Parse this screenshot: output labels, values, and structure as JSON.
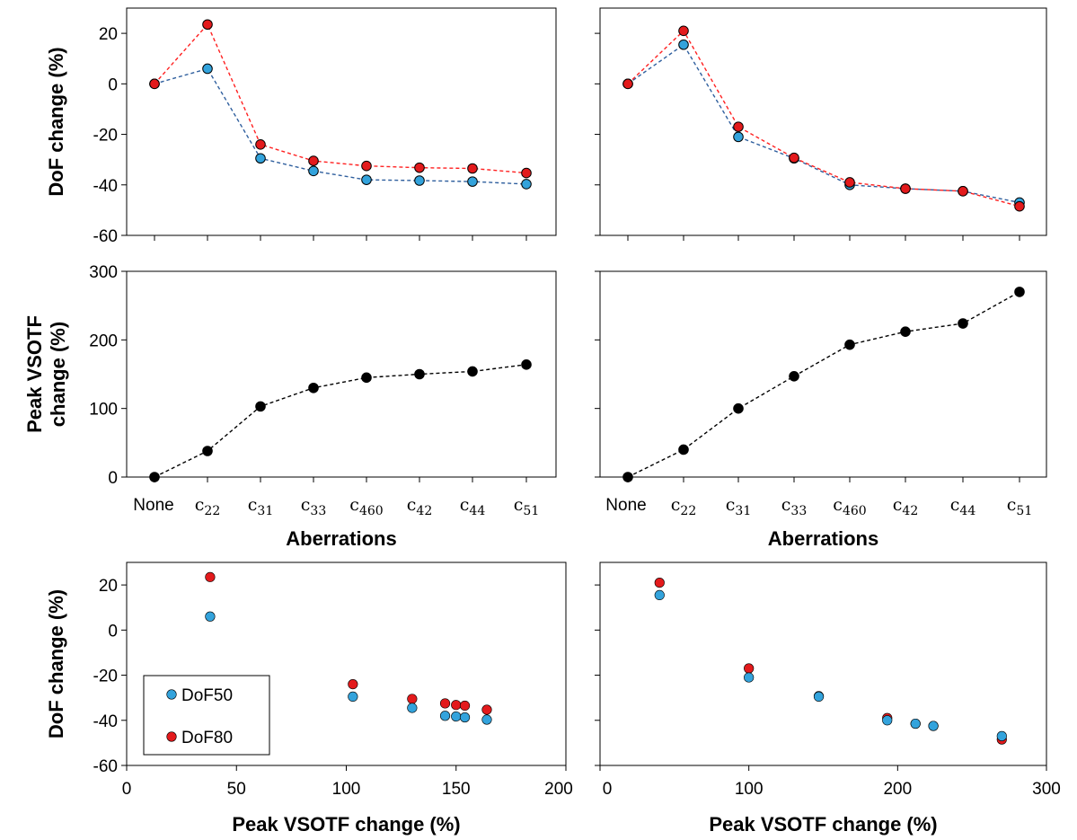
{
  "chart_data": [
    {
      "id": "p1",
      "type": "line",
      "position": "top-left",
      "categories": [
        "None",
        "c22",
        "c31",
        "c33",
        "c460",
        "c42",
        "c44",
        "c51"
      ],
      "ylim": [
        -60,
        30
      ],
      "yticks": [
        -60,
        -40,
        -20,
        0,
        20
      ],
      "ylabel": "DoF change (%)",
      "series": [
        {
          "name": "DoF50",
          "color": "#33a3dc",
          "line_color": "#2f5f9e",
          "values": [
            0,
            6,
            -29.5,
            -34.5,
            -38,
            -38.3,
            -38.7,
            -39.7
          ]
        },
        {
          "name": "DoF80",
          "color": "#e31a1c",
          "line_color": "#ff2020",
          "values": [
            0,
            23.5,
            -24,
            -30.5,
            -32.5,
            -33.2,
            -33.5,
            -35.3
          ]
        }
      ]
    },
    {
      "id": "p2",
      "type": "line",
      "position": "top-right",
      "categories": [
        "None",
        "c22",
        "c31",
        "c33",
        "c460",
        "c42",
        "c44",
        "c51"
      ],
      "ylim": [
        -60,
        30
      ],
      "yticks": [
        -60,
        -40,
        -20,
        0,
        20
      ],
      "series": [
        {
          "name": "DoF50",
          "color": "#33a3dc",
          "line_color": "#2f5f9e",
          "values": [
            0,
            15.5,
            -21,
            -29.5,
            -40,
            -41.5,
            -42.5,
            -47
          ]
        },
        {
          "name": "DoF80",
          "color": "#e31a1c",
          "line_color": "#ff2020",
          "values": [
            0,
            21,
            -17,
            -29.3,
            -39,
            -41.5,
            -42.5,
            -48.5
          ]
        }
      ]
    },
    {
      "id": "p3",
      "type": "line",
      "position": "middle-left",
      "categories": [
        "None",
        "c22",
        "c31",
        "c33",
        "c460",
        "c42",
        "c44",
        "c51"
      ],
      "ylim": [
        0,
        300
      ],
      "yticks": [
        0,
        100,
        200,
        300
      ],
      "ylabel_lines": [
        "Peak VSOTF",
        "change (%)"
      ],
      "xlabel": "Aberrations",
      "series": [
        {
          "name": "Peak VSOTF",
          "color": "#000000",
          "line_color": "#000000",
          "values": [
            0,
            38,
            103,
            130,
            145,
            150,
            154,
            164
          ]
        }
      ]
    },
    {
      "id": "p4",
      "type": "line",
      "position": "middle-right",
      "categories": [
        "None",
        "c22",
        "c31",
        "c33",
        "c460",
        "c42",
        "c44",
        "c51"
      ],
      "ylim": [
        0,
        300
      ],
      "yticks": [
        0,
        100,
        200,
        300
      ],
      "xlabel": "Aberrations",
      "series": [
        {
          "name": "Peak VSOTF",
          "color": "#000000",
          "line_color": "#000000",
          "values": [
            0,
            40,
            100,
            147,
            193,
            212,
            224,
            270
          ]
        }
      ]
    },
    {
      "id": "p5",
      "type": "scatter",
      "position": "bottom-left",
      "xlim": [
        0,
        200
      ],
      "xticks": [
        0,
        50,
        100,
        150,
        200
      ],
      "ylim": [
        -60,
        30
      ],
      "yticks": [
        -60,
        -40,
        -20,
        0,
        20
      ],
      "ylabel": "DoF change (%)",
      "xlabel": "Peak VSOTF change (%)",
      "legend": "bottom-left",
      "series": [
        {
          "name": "DoF50",
          "color": "#33a3dc",
          "x": [
            38,
            103,
            130,
            145,
            150,
            154,
            164
          ],
          "y": [
            6,
            -29.5,
            -34.5,
            -38,
            -38.3,
            -38.7,
            -39.7
          ]
        },
        {
          "name": "DoF80",
          "color": "#e31a1c",
          "x": [
            38,
            103,
            130,
            145,
            150,
            154,
            164
          ],
          "y": [
            23.5,
            -24,
            -30.5,
            -32.5,
            -33.2,
            -33.5,
            -35.3
          ]
        }
      ]
    },
    {
      "id": "p6",
      "type": "scatter",
      "position": "bottom-right",
      "xlim": [
        0,
        300
      ],
      "xticks": [
        0,
        100,
        200,
        300
      ],
      "ylim": [
        -60,
        30
      ],
      "yticks": [
        -60,
        -40,
        -20,
        0,
        20
      ],
      "xlabel": "Peak VSOTF change (%)",
      "series": [
        {
          "name": "DoF50",
          "color": "#33a3dc",
          "x": [
            40,
            100,
            147,
            193,
            212,
            224,
            270
          ],
          "y": [
            15.5,
            -21,
            -29.5,
            -40,
            -41.5,
            -42.5,
            -47
          ]
        },
        {
          "name": "DoF80",
          "color": "#e31a1c",
          "x": [
            40,
            100,
            147,
            193,
            212,
            224,
            270
          ],
          "y": [
            21,
            -17,
            -29.3,
            -39,
            -41.5,
            -42.5,
            -48.5
          ]
        }
      ]
    }
  ]
}
